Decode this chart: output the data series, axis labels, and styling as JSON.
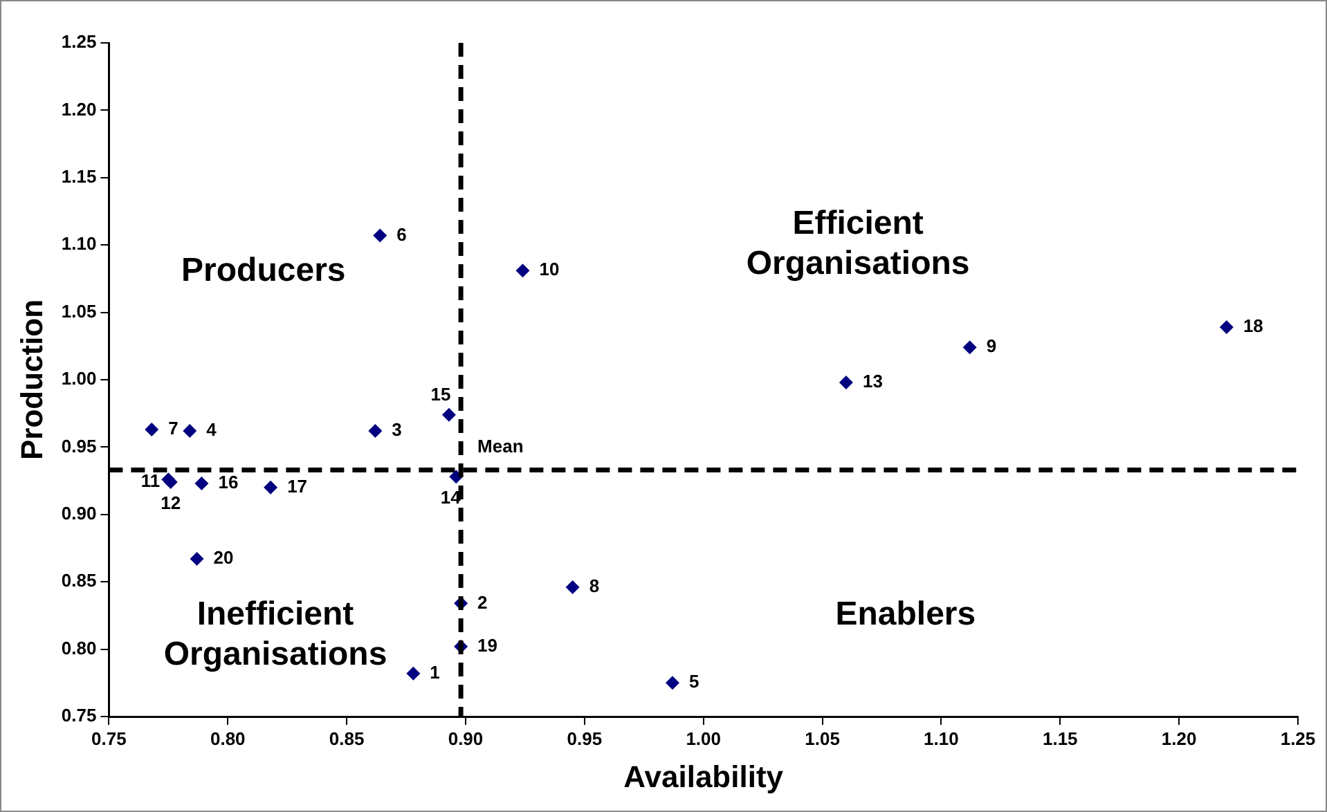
{
  "chart_data": {
    "type": "scatter",
    "xlabel": "Availability",
    "ylabel": "Production",
    "series": [
      {
        "color": "#000080",
        "x": [
          0.878,
          0.898,
          0.862,
          0.784,
          0.987,
          0.864,
          0.768,
          0.945,
          1.112,
          0.924,
          0.775,
          0.776,
          1.06,
          0.896,
          0.893,
          0.789,
          0.818,
          1.22,
          0.898,
          0.787
        ],
        "values": [
          0.782,
          0.834,
          0.962,
          0.962,
          0.775,
          1.107,
          0.963,
          0.846,
          1.024,
          1.081,
          0.926,
          0.924,
          0.998,
          0.928,
          0.974,
          0.923,
          0.92,
          1.039,
          0.802,
          0.867
        ]
      }
    ],
    "xlim": [
      0.75,
      1.25
    ],
    "xticks": [
      {
        "value": 0.75,
        "label": "0.75"
      },
      {
        "value": 0.8,
        "label": "0.80"
      },
      {
        "value": 0.85,
        "label": "0.85"
      },
      {
        "value": 0.9,
        "label": "0.90"
      },
      {
        "value": 0.95,
        "label": "0.95"
      },
      {
        "value": 1,
        "label": "1.00"
      },
      {
        "value": 1.05,
        "label": "1.05"
      },
      {
        "value": 1.1,
        "label": "1.10"
      },
      {
        "value": 1.15,
        "label": "1.15"
      },
      {
        "value": 1.2,
        "label": "1.20"
      },
      {
        "value": 1.25,
        "label": "1.25"
      }
    ],
    "ylim": [
      0.75,
      1.25
    ],
    "yticks": [
      {
        "value": 0.75,
        "label": "0.75"
      },
      {
        "value": 0.8,
        "label": "0.80"
      },
      {
        "value": 0.85,
        "label": "0.85"
      },
      {
        "value": 0.9,
        "label": "0.90"
      },
      {
        "value": 0.95,
        "label": "0.95"
      },
      {
        "value": 1,
        "label": "1.00"
      },
      {
        "value": 1.05,
        "label": "1.05"
      },
      {
        "value": 1.1,
        "label": "1.10"
      },
      {
        "value": 1.15,
        "label": "1.15"
      },
      {
        "value": 1.2,
        "label": "1.20"
      },
      {
        "value": 1.25,
        "label": "1.25"
      }
    ],
    "ref_lines": [
      {
        "axis": "x",
        "value": 0.898,
        "label": null,
        "line_style": "dashed",
        "color": "#000000"
      },
      {
        "axis": "y",
        "value": 0.933,
        "label": "Mean",
        "line_style": "dashed",
        "color": "#000000"
      }
    ],
    "annotations": [
      "Producers",
      "Efficient\nOrganisations",
      "Inefficient\nOrganisations",
      "Enablers",
      {
        "text": "1",
        "x": 0.878,
        "y": 0.782
      },
      {
        "text": "2",
        "x": 0.898,
        "y": 0.834
      },
      {
        "text": "3",
        "x": 0.862,
        "y": 0.962
      },
      {
        "text": "4",
        "x": 0.784,
        "y": 0.962
      },
      {
        "text": "5",
        "x": 0.987,
        "y": 0.775
      },
      {
        "text": "6",
        "x": 0.864,
        "y": 1.107
      },
      {
        "text": "7",
        "x": 0.768,
        "y": 0.963
      },
      {
        "text": "8",
        "x": 0.945,
        "y": 0.846
      },
      {
        "text": "9",
        "x": 1.112,
        "y": 1.024
      },
      {
        "text": "10",
        "x": 0.924,
        "y": 1.081
      },
      {
        "text": "11",
        "x": 0.775,
        "y": 0.926
      },
      {
        "text": "12",
        "x": 0.776,
        "y": 0.924
      },
      {
        "text": "13",
        "x": 1.06,
        "y": 0.998
      },
      {
        "text": "14",
        "x": 0.896,
        "y": 0.928
      },
      {
        "text": "15",
        "x": 0.893,
        "y": 0.974
      },
      {
        "text": "16",
        "x": 0.789,
        "y": 0.923
      },
      {
        "text": "17",
        "x": 0.818,
        "y": 0.92
      },
      {
        "text": "18",
        "x": 1.22,
        "y": 1.039
      },
      {
        "text": "19",
        "x": 0.898,
        "y": 0.802
      },
      {
        "text": "20",
        "x": 0.787,
        "y": 0.867
      }
    ],
    "grid": false,
    "legend": false,
    "marker": "diamond"
  }
}
